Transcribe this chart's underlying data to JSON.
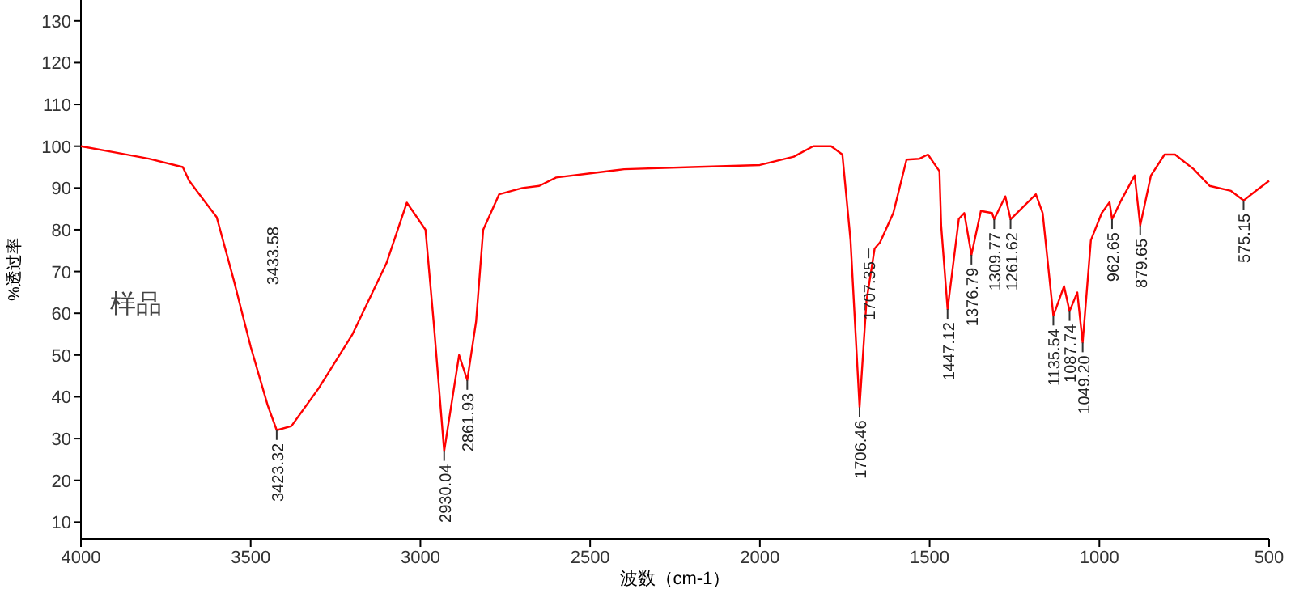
{
  "chart_data": {
    "type": "line",
    "xlabel": "波数（cm-1）",
    "ylabel": "%透过率",
    "xlim": [
      4000,
      500
    ],
    "ylim": [
      6,
      135
    ],
    "xticks": [
      4000,
      3500,
      3000,
      2500,
      2000,
      1500,
      1000,
      500
    ],
    "yticks": [
      10,
      20,
      30,
      40,
      50,
      60,
      70,
      80,
      90,
      100,
      110,
      120,
      130
    ],
    "grid": false,
    "marker": "none",
    "line_style": "solid",
    "series": [
      {
        "color": "#ff0000",
        "x": [
          4000,
          3900,
          3800,
          3700,
          3681,
          3600,
          3550,
          3500,
          3450,
          3423.32,
          3380,
          3300,
          3200,
          3100,
          3040,
          2985,
          2961,
          2930.04,
          2886,
          2861.93,
          2836,
          2815,
          2768,
          2700,
          2650,
          2600,
          2500,
          2400,
          2200,
          2000,
          1900,
          1843,
          1790,
          1757,
          1733,
          1706.46,
          1686,
          1662,
          1646,
          1607,
          1568,
          1530,
          1505,
          1471,
          1466,
          1447.12,
          1414,
          1398,
          1376.79,
          1349,
          1316,
          1309.77,
          1277,
          1261.62,
          1187,
          1167,
          1135.54,
          1104,
          1087.74,
          1065,
          1049.2,
          1025,
          993,
          970,
          962.65,
          936,
          896,
          879.65,
          848,
          808,
          777,
          722,
          675,
          612,
          575.15,
          544,
          500
        ],
        "values": [
          100,
          98.5,
          97,
          95,
          91.7,
          83,
          68,
          52,
          38,
          32,
          33,
          42,
          55,
          72,
          86.5,
          80,
          58,
          27,
          50,
          44,
          58,
          80,
          88.5,
          90,
          90.5,
          92.5,
          93.5,
          94.5,
          95,
          95.5,
          97.5,
          100,
          100,
          98,
          77.5,
          37.5,
          63,
          75.5,
          77,
          84,
          96.8,
          97,
          98,
          94,
          81,
          61,
          82.6,
          84,
          74,
          84.5,
          84,
          82.5,
          88,
          82.5,
          88.5,
          84,
          59.4,
          66.5,
          60.5,
          65,
          53,
          77.5,
          84,
          86.6,
          82.5,
          87,
          93,
          81,
          93,
          98,
          98,
          94.5,
          90.5,
          89.3,
          87,
          89,
          91.7
        ]
      }
    ],
    "annotations": [
      "样品",
      "3433.58",
      {
        "text": "3423.32",
        "x": 3423.32,
        "y": 32
      },
      {
        "text": "2930.04",
        "x": 2930.04,
        "y": 27
      },
      {
        "text": "2861.93",
        "x": 2861.93,
        "y": 44
      },
      {
        "text": "1707.35",
        "x": 1680,
        "y": 75.5
      },
      {
        "text": "1706.46",
        "x": 1706.46,
        "y": 37.5
      },
      {
        "text": "1447.12",
        "x": 1447.12,
        "y": 61
      },
      {
        "text": "1376.79",
        "x": 1376.79,
        "y": 74
      },
      {
        "text": "1309.77",
        "x": 1309.77,
        "y": 82.5
      },
      {
        "text": "1261.62",
        "x": 1261.62,
        "y": 82.5
      },
      {
        "text": "1135.54",
        "x": 1135.54,
        "y": 59.4
      },
      {
        "text": "1087.74",
        "x": 1087.74,
        "y": 60.5
      },
      {
        "text": "1049.20",
        "x": 1049.2,
        "y": 53
      },
      {
        "text": "962.65",
        "x": 962.65,
        "y": 82.5
      },
      {
        "text": "879.65",
        "x": 879.65,
        "y": 81
      },
      {
        "text": "575.15",
        "x": 575.15,
        "y": 87
      }
    ]
  }
}
